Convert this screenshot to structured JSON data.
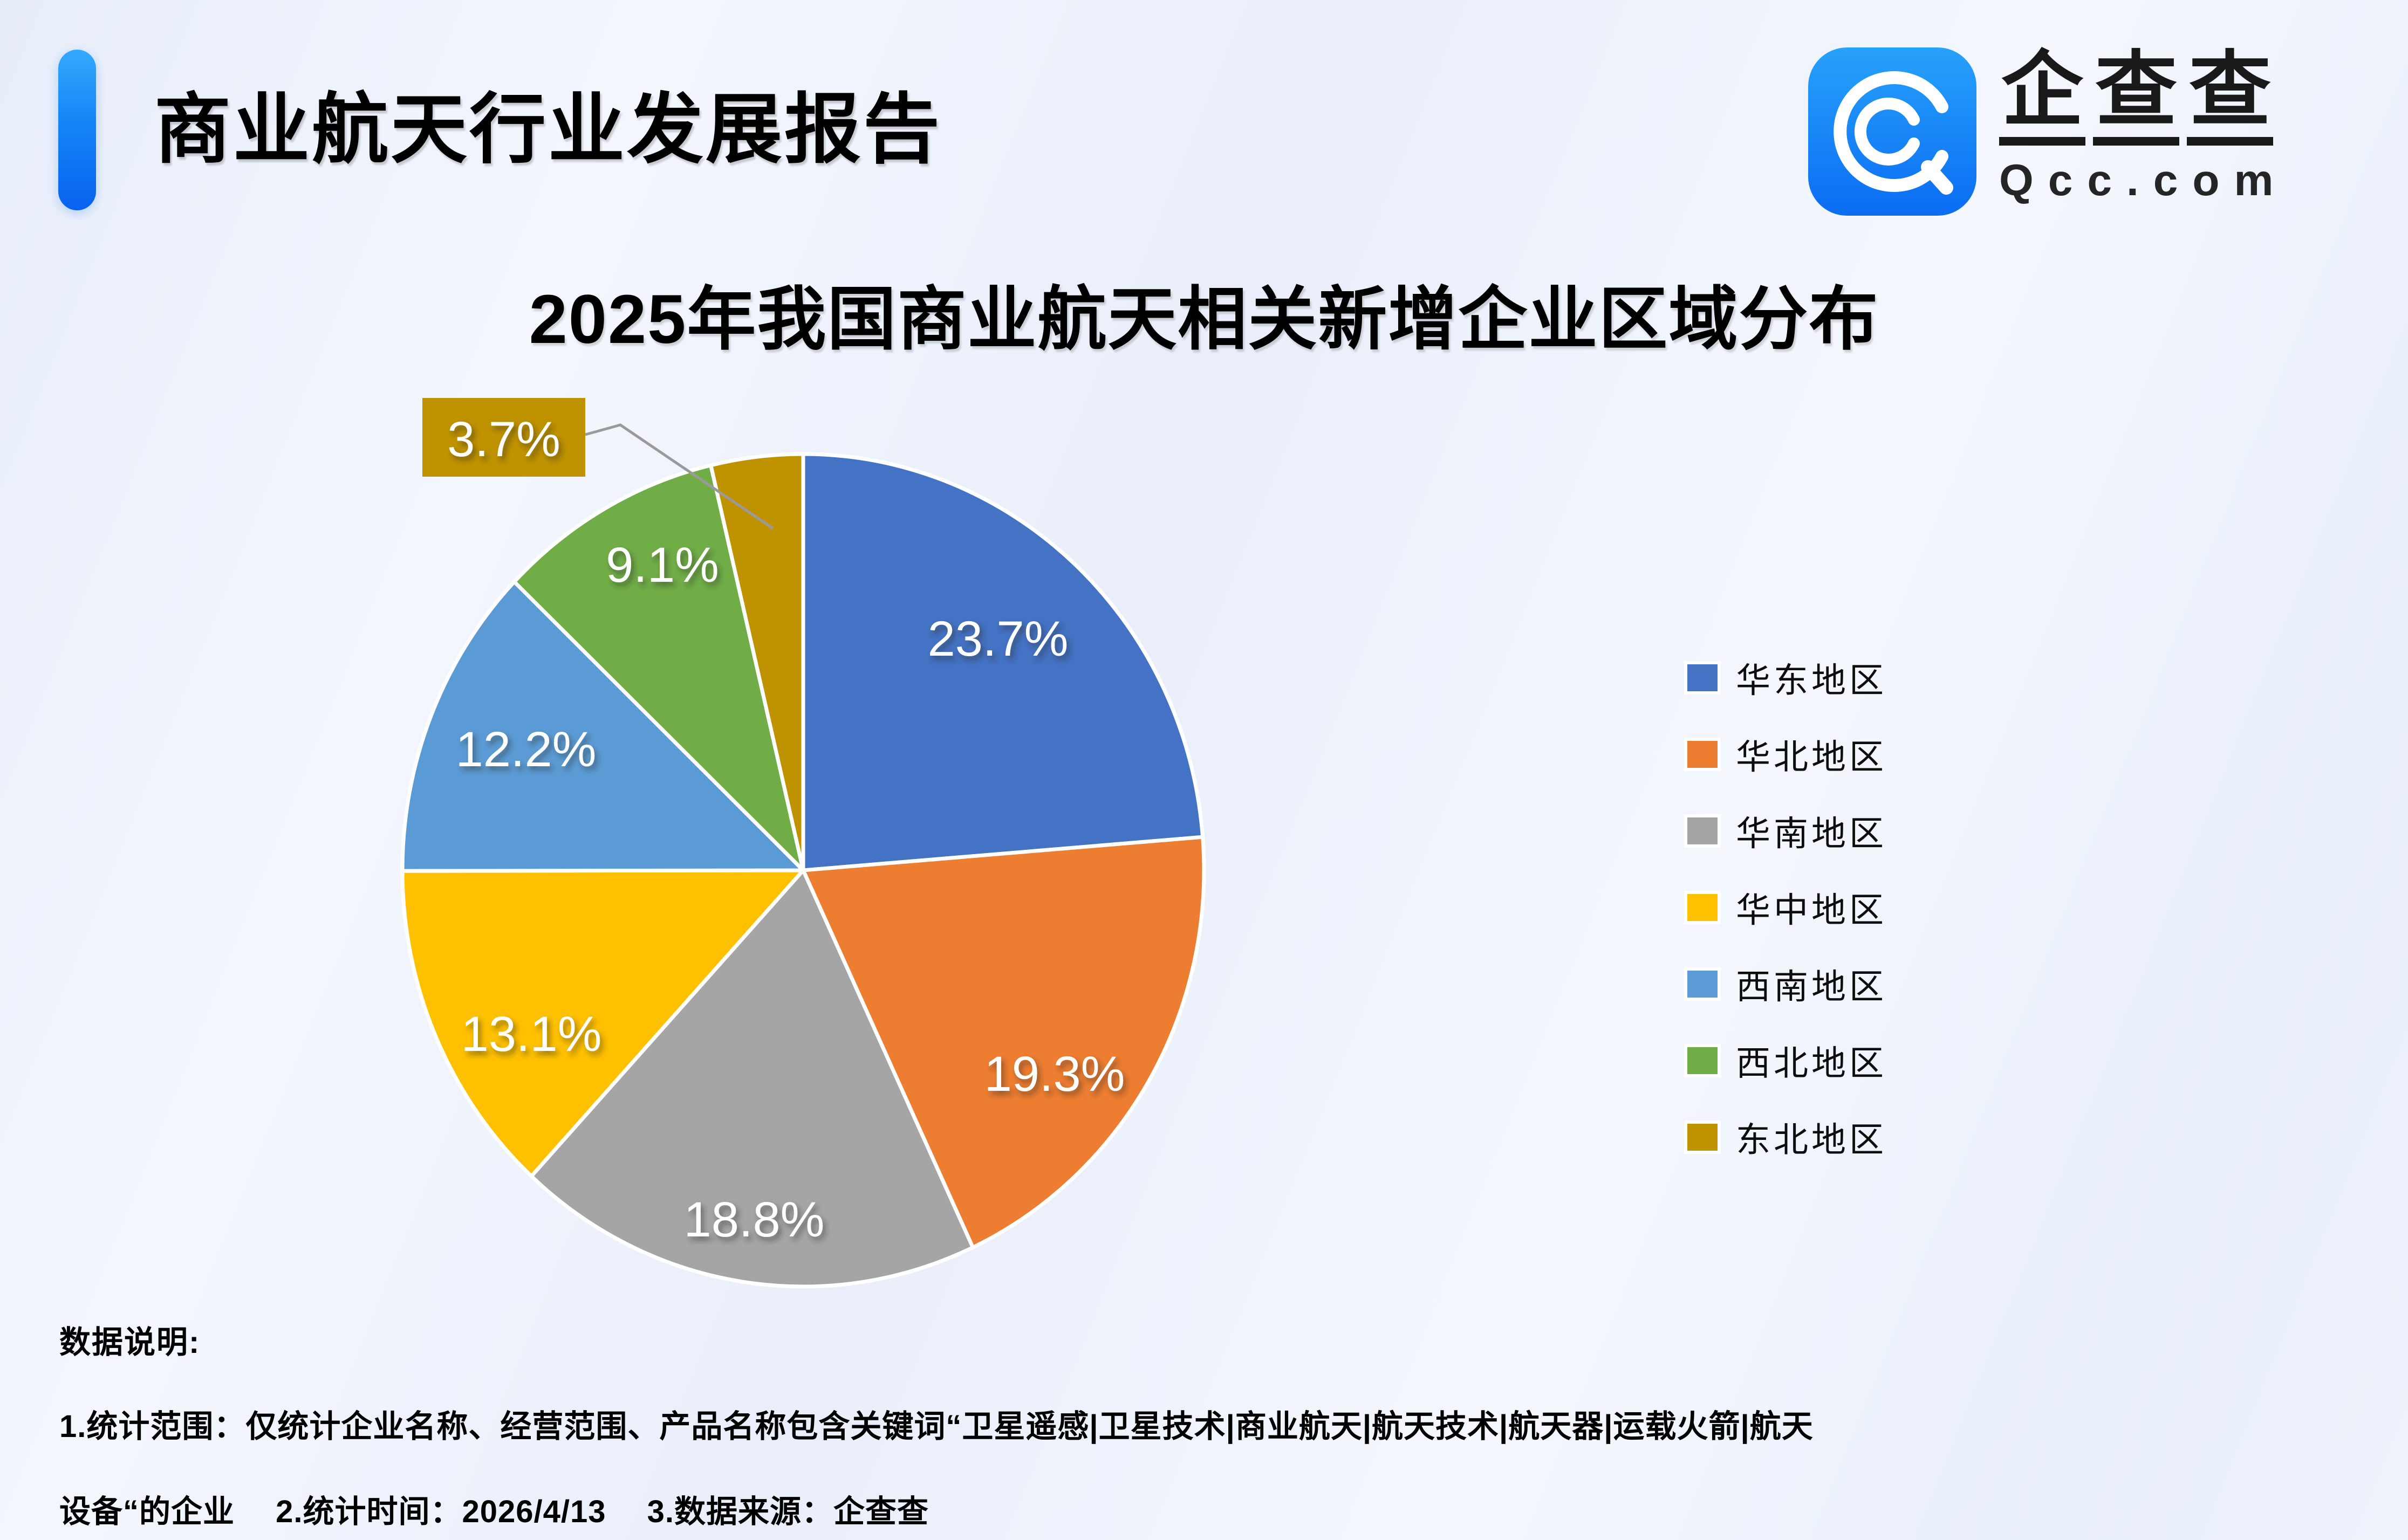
{
  "header": {
    "title": "商业航天行业发展报告"
  },
  "logo": {
    "brand_cn": [
      "企",
      "查",
      "查"
    ],
    "domain": "Qcc.com",
    "icon_color_top": "#27a2fb",
    "icon_color_bottom": "#0b6cf3"
  },
  "chart_data": {
    "type": "pie",
    "title": "2025年我国商业航天相关新增企业区域分布",
    "categories": [
      "华东地区",
      "华北地区",
      "华南地区",
      "华中地区",
      "西南地区",
      "西北地区",
      "东北地区"
    ],
    "values": [
      23.7,
      19.3,
      18.8,
      13.1,
      12.2,
      9.1,
      3.7
    ],
    "labels": [
      "23.7%",
      "19.3%",
      "18.8%",
      "13.1%",
      "12.2%",
      "9.1%",
      "3.7%"
    ],
    "colors": [
      "#4472C4",
      "#ED7D31",
      "#A5A5A5",
      "#FFC000",
      "#5B9BD5",
      "#70AD47",
      "#BF9200"
    ],
    "legend_position": "right",
    "start_angle_deg": 0,
    "direction": "clockwise",
    "callout_slice": "东北地区"
  },
  "footer": {
    "heading": "数据说明:",
    "line1": "1.统计范围：仅统计企业名称、经营范围、产品名称包含关键词“卫星遥感|卫星技术|商业航天|航天技术|航天器|运载火箭|航天",
    "line2": "设备“的企业　 2.统计时间：2026/4/13　 3.数据来源：企查查"
  }
}
